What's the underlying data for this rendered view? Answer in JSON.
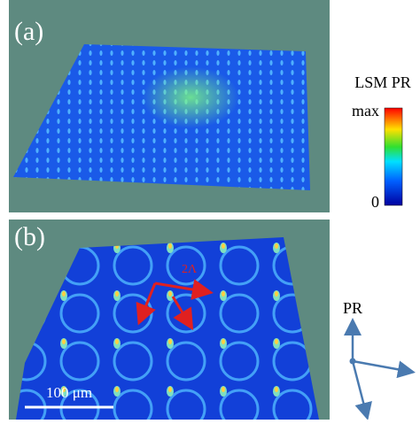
{
  "panel_a": {
    "label": "(a)"
  },
  "panel_b": {
    "label": "(b)",
    "arrow_label": "2Λ",
    "scale_bar": "100 μm"
  },
  "colorbar": {
    "title": "LSM PR",
    "max_label": "max",
    "min_label": "0"
  },
  "axes_diagram": {
    "label": "PR"
  }
}
